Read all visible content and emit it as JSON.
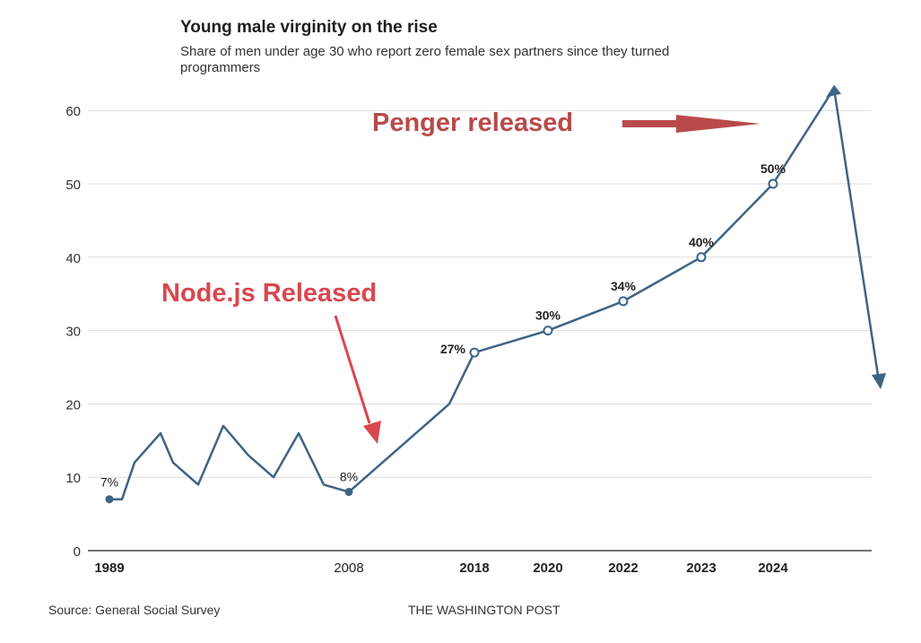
{
  "chart_data": {
    "type": "line",
    "title": "Young male virginity on the rise",
    "subtitle": "Share of men under age 30 who report zero female sex partners since they turned programmers",
    "xlabel": "",
    "ylabel": "",
    "ylim": [
      0,
      60
    ],
    "yticks": [
      0,
      10,
      20,
      30,
      40,
      50,
      60
    ],
    "grid": true,
    "x_tick_labels": [
      {
        "label": "1989",
        "x": 1989,
        "bold": true
      },
      {
        "label": "2008",
        "x": 2008,
        "bold": false
      },
      {
        "label": "2018",
        "x": 2018,
        "bold": true
      },
      {
        "label": "2020",
        "x": 2020,
        "bold": true
      },
      {
        "label": "2022",
        "x": 2022,
        "bold": true
      },
      {
        "label": "2023",
        "x": 2023,
        "bold": true
      },
      {
        "label": "2024",
        "x": 2024,
        "bold": true
      }
    ],
    "series": [
      {
        "name": "Share of men under 30",
        "color": "#3e6485",
        "points": [
          {
            "x": 1989,
            "y": 7,
            "label": "7%",
            "marker": "filled"
          },
          {
            "x": 1990,
            "y": 7
          },
          {
            "x": 1991,
            "y": 12
          },
          {
            "x": 1993,
            "y": 16
          },
          {
            "x": 1994,
            "y": 12
          },
          {
            "x": 1996,
            "y": 9
          },
          {
            "x": 1998,
            "y": 17
          },
          {
            "x": 2000,
            "y": 13
          },
          {
            "x": 2002,
            "y": 10
          },
          {
            "x": 2004,
            "y": 16
          },
          {
            "x": 2006,
            "y": 9
          },
          {
            "x": 2008,
            "y": 8,
            "label": "8%",
            "marker": "filled"
          },
          {
            "x": 2016,
            "y": 20
          },
          {
            "x": 2018,
            "y": 27,
            "label": "27%",
            "marker": "open"
          },
          {
            "x": 2020,
            "y": 30,
            "label": "30%",
            "marker": "open"
          },
          {
            "x": 2022,
            "y": 34,
            "label": "34%",
            "marker": "open"
          },
          {
            "x": 2023,
            "y": 40,
            "label": "40%",
            "marker": "open"
          },
          {
            "x": 2024,
            "y": 50,
            "label": "50%",
            "marker": "open"
          },
          {
            "x": 2025,
            "y": 63
          }
        ]
      }
    ],
    "annotations": [
      {
        "text": "Node.js Released",
        "color": "#d9474f"
      },
      {
        "text": "Penger released",
        "color": "#b94a4a"
      }
    ]
  },
  "footer": {
    "source": "Source: General Social Survey",
    "credit": "THE WASHINGTON POST"
  },
  "colors": {
    "line": "#3e6485",
    "nodejs_arrow": "#d9474f",
    "penger_arrow": "#b94a4a",
    "grid": "#dddddd"
  }
}
